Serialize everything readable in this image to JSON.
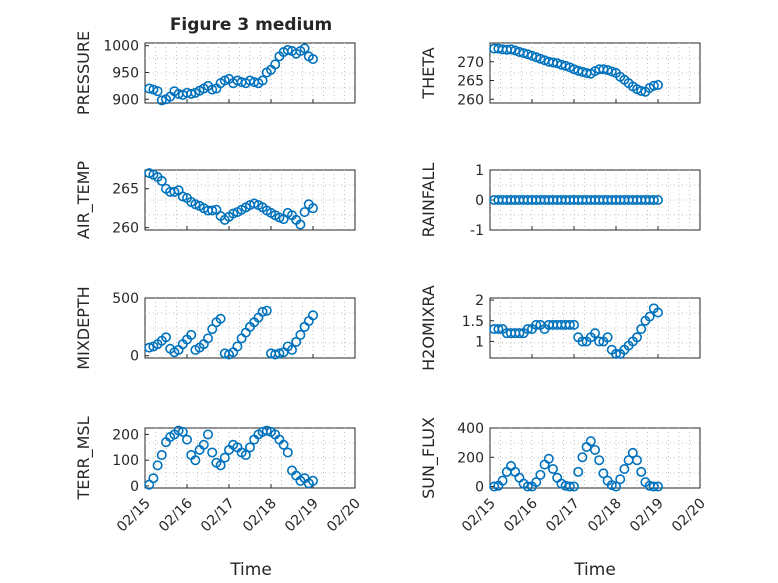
{
  "title": "Figure 3 medium",
  "x_axis_label": "Time",
  "x_tick_labels": [
    "02/15",
    "02/16",
    "02/17",
    "02/18",
    "02/19",
    "02/20"
  ],
  "marker_color": "#0072BD",
  "chart_data": [
    {
      "type": "scatter",
      "name": "pressure",
      "ylabel": "PRESSURE",
      "yticks": [
        900,
        950,
        1000
      ],
      "ylim": [
        893,
        1005
      ],
      "x": [
        0.1,
        0.2,
        0.3,
        0.4,
        0.5,
        0.6,
        0.7,
        0.8,
        0.9,
        1.0,
        1.1,
        1.2,
        1.3,
        1.4,
        1.5,
        1.6,
        1.7,
        1.8,
        1.9,
        2.0,
        2.1,
        2.2,
        2.3,
        2.4,
        2.5,
        2.6,
        2.7,
        2.8,
        2.9,
        3.0,
        3.1,
        3.2,
        3.3,
        3.4,
        3.5,
        3.6,
        3.7,
        3.8,
        3.9,
        4.0
      ],
      "y": [
        920,
        918,
        915,
        898,
        900,
        905,
        915,
        910,
        908,
        912,
        910,
        912,
        916,
        920,
        925,
        918,
        920,
        930,
        935,
        938,
        930,
        935,
        932,
        930,
        935,
        932,
        930,
        935,
        950,
        955,
        965,
        980,
        988,
        992,
        990,
        985,
        990,
        995,
        980,
        975
      ]
    },
    {
      "type": "scatter",
      "name": "theta",
      "ylabel": "THETA",
      "yticks": [
        260,
        265,
        270
      ],
      "ylim": [
        259,
        275
      ],
      "x": [
        0.1,
        0.2,
        0.3,
        0.4,
        0.5,
        0.6,
        0.7,
        0.8,
        0.9,
        1.0,
        1.1,
        1.2,
        1.3,
        1.4,
        1.5,
        1.6,
        1.7,
        1.8,
        1.9,
        2.0,
        2.1,
        2.2,
        2.3,
        2.4,
        2.5,
        2.6,
        2.7,
        2.8,
        2.9,
        3.0,
        3.1,
        3.2,
        3.3,
        3.4,
        3.5,
        3.6,
        3.7,
        3.8,
        3.9,
        4.0
      ],
      "y": [
        273.5,
        273.5,
        273.3,
        273.2,
        273.3,
        273,
        272.6,
        272.3,
        272,
        271.6,
        271.2,
        270.8,
        270.4,
        270,
        269.8,
        269.6,
        269.2,
        268.9,
        268.5,
        268,
        267.6,
        267.3,
        267,
        266.8,
        267.5,
        268,
        268,
        267.8,
        267.4,
        267,
        266,
        265.2,
        264.3,
        263.4,
        262.7,
        262.2,
        262,
        263,
        263.6,
        263.8
      ]
    },
    {
      "type": "scatter",
      "name": "air_temp",
      "ylabel": "AIR_TEMP",
      "yticks": [
        260,
        265
      ],
      "ylim": [
        259.7,
        267.4
      ],
      "x": [
        0.1,
        0.2,
        0.3,
        0.4,
        0.5,
        0.6,
        0.7,
        0.8,
        0.9,
        1.0,
        1.1,
        1.2,
        1.3,
        1.4,
        1.5,
        1.6,
        1.7,
        1.8,
        1.9,
        2.0,
        2.1,
        2.2,
        2.3,
        2.4,
        2.5,
        2.6,
        2.7,
        2.8,
        2.9,
        3.0,
        3.1,
        3.2,
        3.3,
        3.4,
        3.5,
        3.6,
        3.7,
        3.8,
        3.9,
        4.0
      ],
      "y": [
        267,
        266.8,
        266.5,
        266,
        265,
        264.6,
        264.6,
        264.8,
        264,
        263.8,
        263.3,
        263,
        262.8,
        262.5,
        262.2,
        262.2,
        262.3,
        261.5,
        261,
        261.4,
        261.8,
        262,
        262.3,
        262.6,
        262.9,
        263.1,
        262.9,
        262.6,
        262.2,
        261.9,
        261.6,
        261.3,
        261.1,
        261.9,
        261.6,
        261,
        260.4,
        262,
        263,
        262.5
      ]
    },
    {
      "type": "scatter",
      "name": "rainfall",
      "ylabel": "RAINFALL",
      "yticks": [
        -1,
        0,
        1
      ],
      "ylim": [
        -1,
        1
      ],
      "x": [
        0.1,
        0.2,
        0.3,
        0.4,
        0.5,
        0.6,
        0.7,
        0.8,
        0.9,
        1.0,
        1.1,
        1.2,
        1.3,
        1.4,
        1.5,
        1.6,
        1.7,
        1.8,
        1.9,
        2.0,
        2.1,
        2.2,
        2.3,
        2.4,
        2.5,
        2.6,
        2.7,
        2.8,
        2.9,
        3.0,
        3.1,
        3.2,
        3.3,
        3.4,
        3.5,
        3.6,
        3.7,
        3.8,
        3.9,
        4.0
      ],
      "y": [
        0,
        0,
        0,
        0,
        0,
        0,
        0,
        0,
        0,
        0,
        0,
        0,
        0,
        0,
        0,
        0,
        0,
        0,
        0,
        0,
        0,
        0,
        0,
        0,
        0,
        0,
        0,
        0,
        0,
        0,
        0,
        0,
        0,
        0,
        0,
        0,
        0,
        0,
        0,
        0
      ]
    },
    {
      "type": "scatter",
      "name": "mixdepth",
      "ylabel": "MIXDEPTH",
      "yticks": [
        0,
        500
      ],
      "ylim": [
        -20,
        500
      ],
      "x": [
        0.1,
        0.2,
        0.3,
        0.4,
        0.5,
        0.6,
        0.7,
        0.8,
        0.9,
        1.0,
        1.1,
        1.2,
        1.3,
        1.4,
        1.5,
        1.6,
        1.7,
        1.8,
        1.9,
        2.0,
        2.1,
        2.2,
        2.3,
        2.4,
        2.5,
        2.6,
        2.7,
        2.8,
        2.9,
        3.0,
        3.1,
        3.2,
        3.3,
        3.4,
        3.5,
        3.6,
        3.7,
        3.8,
        3.9,
        4.0
      ],
      "y": [
        70,
        80,
        100,
        130,
        160,
        60,
        30,
        50,
        100,
        140,
        180,
        50,
        70,
        100,
        150,
        230,
        290,
        320,
        20,
        10,
        30,
        80,
        150,
        200,
        250,
        290,
        330,
        380,
        390,
        20,
        10,
        20,
        30,
        80,
        50,
        120,
        180,
        250,
        300,
        350
      ]
    },
    {
      "type": "scatter",
      "name": "h2omixra",
      "ylabel": "H2OMIXRA",
      "yticks": [
        1,
        1.5,
        2
      ],
      "ylim": [
        0.6,
        2.05
      ],
      "x": [
        0.1,
        0.2,
        0.3,
        0.4,
        0.5,
        0.6,
        0.7,
        0.8,
        0.9,
        1.0,
        1.1,
        1.2,
        1.3,
        1.4,
        1.5,
        1.6,
        1.7,
        1.8,
        1.9,
        2.0,
        2.1,
        2.2,
        2.3,
        2.4,
        2.5,
        2.6,
        2.7,
        2.8,
        2.9,
        3.0,
        3.1,
        3.2,
        3.3,
        3.4,
        3.5,
        3.6,
        3.7,
        3.8,
        3.9,
        4.0
      ],
      "y": [
        1.3,
        1.3,
        1.3,
        1.2,
        1.2,
        1.2,
        1.2,
        1.2,
        1.3,
        1.3,
        1.4,
        1.4,
        1.3,
        1.4,
        1.4,
        1.4,
        1.4,
        1.4,
        1.4,
        1.4,
        1.1,
        1.0,
        1.0,
        1.1,
        1.2,
        1.0,
        1.0,
        1.1,
        0.8,
        0.7,
        0.7,
        0.8,
        0.9,
        1.0,
        1.1,
        1.3,
        1.5,
        1.6,
        1.8,
        1.7
      ]
    },
    {
      "type": "scatter",
      "name": "terr_msl",
      "ylabel": "TERR_MSL",
      "yticks": [
        0,
        100,
        200
      ],
      "ylim": [
        -8,
        225
      ],
      "x": [
        0.1,
        0.2,
        0.3,
        0.4,
        0.5,
        0.6,
        0.7,
        0.8,
        0.9,
        1.0,
        1.1,
        1.2,
        1.3,
        1.4,
        1.5,
        1.6,
        1.7,
        1.8,
        1.9,
        2.0,
        2.1,
        2.2,
        2.3,
        2.4,
        2.5,
        2.6,
        2.7,
        2.8,
        2.9,
        3.0,
        3.1,
        3.2,
        3.3,
        3.4,
        3.5,
        3.6,
        3.7,
        3.8,
        3.9,
        4.0
      ],
      "y": [
        5,
        30,
        80,
        120,
        170,
        190,
        200,
        215,
        210,
        180,
        120,
        100,
        140,
        160,
        200,
        130,
        90,
        80,
        110,
        140,
        160,
        150,
        130,
        120,
        150,
        180,
        200,
        210,
        215,
        210,
        200,
        180,
        160,
        130,
        60,
        40,
        20,
        30,
        10,
        20
      ]
    },
    {
      "type": "scatter",
      "name": "sun_flux",
      "ylabel": "SUN_FLUX",
      "yticks": [
        0,
        200,
        400
      ],
      "ylim": [
        -10,
        400
      ],
      "x": [
        0.1,
        0.2,
        0.3,
        0.4,
        0.5,
        0.6,
        0.7,
        0.8,
        0.9,
        1.0,
        1.1,
        1.2,
        1.3,
        1.4,
        1.5,
        1.6,
        1.7,
        1.8,
        1.9,
        2.0,
        2.1,
        2.2,
        2.3,
        2.4,
        2.5,
        2.6,
        2.7,
        2.8,
        2.9,
        3.0,
        3.1,
        3.2,
        3.3,
        3.4,
        3.5,
        3.6,
        3.7,
        3.8,
        3.9,
        4.0
      ],
      "y": [
        0,
        5,
        40,
        100,
        140,
        100,
        60,
        20,
        0,
        0,
        30,
        80,
        150,
        190,
        120,
        60,
        20,
        5,
        0,
        0,
        100,
        200,
        270,
        310,
        250,
        180,
        90,
        40,
        10,
        0,
        50,
        120,
        180,
        230,
        180,
        100,
        30,
        5,
        0,
        0
      ]
    }
  ]
}
